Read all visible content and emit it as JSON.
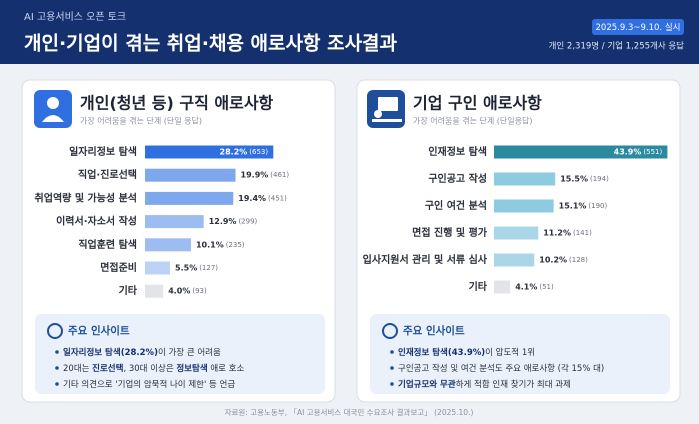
{
  "header": {
    "kicker": "AI 고용서비스 오픈 토크",
    "title": "개인·기업이 겪는 취업·채용 애로사항 조사결과",
    "period": "2025.9.3~9.10. 실시",
    "respondents": "개인 2,319명 / 기업 1,255개사 응답"
  },
  "chart_data": [
    {
      "type": "bar",
      "orientation": "horizontal",
      "title": "개인(청년 등) 구직 애로사항",
      "subtitle": "가장 어려움을 겪는 단계 (단일 응답)",
      "categories": [
        "일자리정보 탐색",
        "직업·진로선택",
        "취업역량 및 가능성 분석",
        "이력서·자소서 작성",
        "직업훈련 탐색",
        "면접준비",
        "기타"
      ],
      "values": [
        28.2,
        19.9,
        19.4,
        12.9,
        10.1,
        5.5,
        4.0
      ],
      "value_labels": [
        "28.2%",
        "19.9%",
        "19.4%",
        "12.9%",
        "10.1%",
        "5.5%",
        "4.0%"
      ],
      "counts": [
        "(653)",
        "(461)",
        "(451)",
        "(299)",
        "(235)",
        "(127)",
        "(93)"
      ],
      "colors": [
        "#2f6fe0",
        "#7ea7ee",
        "#7ea7ee",
        "#9cbcf2",
        "#9cbcf2",
        "#bcd2f6",
        "#e2e4e8"
      ]
    },
    {
      "type": "bar",
      "orientation": "horizontal",
      "title": "기업 구인 애로사항",
      "subtitle": "가장 어려움을 겪는 단계 (단일응답)",
      "categories": [
        "인재정보 탐색",
        "구인공고 작성",
        "구인 여건 분석",
        "면접 진행 및 평가",
        "입사지원서 관리 및 서류 심사",
        "기타"
      ],
      "values": [
        43.9,
        15.5,
        15.1,
        11.2,
        10.2,
        4.1
      ],
      "value_labels": [
        "43.9%",
        "15.5%",
        "15.1%",
        "11.2%",
        "10.2%",
        "4.1%"
      ],
      "counts": [
        "(551)",
        "(194)",
        "(190)",
        "(141)",
        "(128)",
        "(51)"
      ],
      "colors": [
        "#2a8aa0",
        "#8fcbe0",
        "#8fcbe0",
        "#a9d7e7",
        "#a9d7e7",
        "#e2e4e8"
      ]
    }
  ],
  "insights": [
    {
      "title": "주요 인사이트",
      "bullets": [
        [
          {
            "text": "일자리정보 탐색(28.2%)",
            "bold": true
          },
          {
            "text": "이 가장 큰 어려움",
            "bold": false
          }
        ],
        [
          {
            "text": "20대는 ",
            "bold": false
          },
          {
            "text": "진로선택",
            "bold": true
          },
          {
            "text": ", 30대 이상은 ",
            "bold": false
          },
          {
            "text": "정보탐색",
            "bold": true
          },
          {
            "text": " 애로 호소",
            "bold": false
          }
        ],
        [
          {
            "text": "기타 의견으로 '기업의 암묵적 나이 제한' 등 언급",
            "bold": false
          }
        ]
      ]
    },
    {
      "title": "주요 인사이트",
      "bullets": [
        [
          {
            "text": "인재정보 탐색(43.9%)",
            "bold": true
          },
          {
            "text": "이 압도적 1위",
            "bold": false
          }
        ],
        [
          {
            "text": "구인공고 작성 및 여건 분석도 주요 애로사항 (각 15% 대)",
            "bold": false
          }
        ],
        [
          {
            "text": "기업규모와 무관",
            "bold": true
          },
          {
            "text": "하게 적합 인재 찾기가 최대 과제",
            "bold": false
          }
        ]
      ]
    }
  ],
  "source": "자료원: 고용노동부, 「AI 고용서비스 대국민 수요조사 결과보고」 (2025.10.)"
}
